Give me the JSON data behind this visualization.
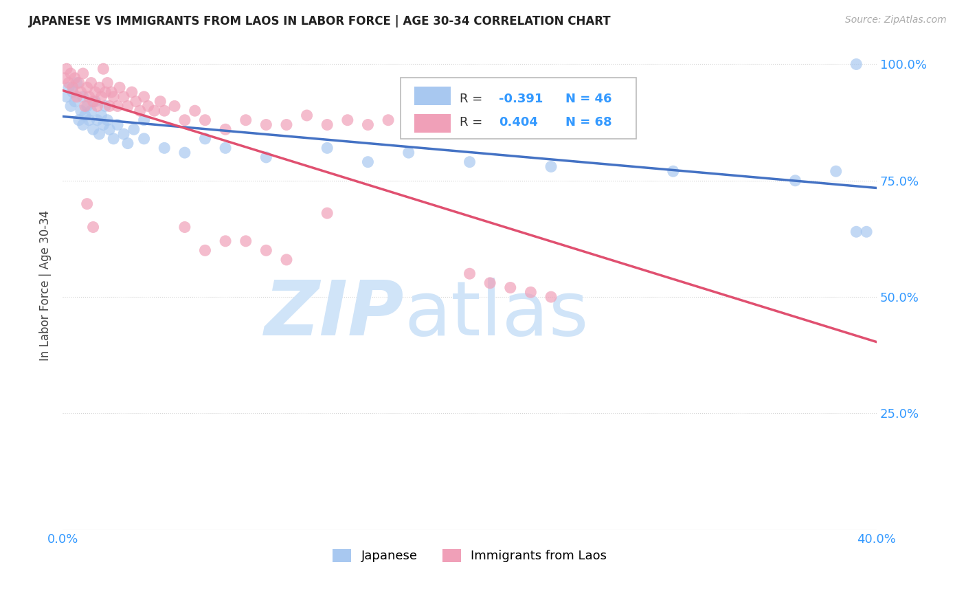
{
  "title": "JAPANESE VS IMMIGRANTS FROM LAOS IN LABOR FORCE | AGE 30-34 CORRELATION CHART",
  "source": "Source: ZipAtlas.com",
  "ylabel": "In Labor Force | Age 30-34",
  "xlim": [
    0.0,
    0.4
  ],
  "ylim": [
    0.0,
    1.05
  ],
  "legend_label1": "Japanese",
  "legend_label2": "Immigrants from Laos",
  "R1": -0.391,
  "N1": 46,
  "R2": 0.404,
  "N2": 68,
  "color_japanese": "#a8c8f0",
  "color_laos": "#f0a0b8",
  "color_line_japanese": "#4472c4",
  "color_line_laos": "#e05070",
  "watermark_color": "#d0e4f8",
  "japanese_x": [
    0.002,
    0.003,
    0.004,
    0.005,
    0.006,
    0.007,
    0.008,
    0.009,
    0.01,
    0.01,
    0.011,
    0.012,
    0.013,
    0.014,
    0.015,
    0.016,
    0.017,
    0.018,
    0.019,
    0.02,
    0.021,
    0.022,
    0.023,
    0.025,
    0.027,
    0.03,
    0.032,
    0.035,
    0.04,
    0.05,
    0.06,
    0.07,
    0.08,
    0.1,
    0.13,
    0.15,
    0.17,
    0.2,
    0.24,
    0.3,
    0.36,
    0.38,
    0.39,
    0.39,
    0.395,
    0.04
  ],
  "japanese_y": [
    0.93,
    0.95,
    0.91,
    0.94,
    0.92,
    0.96,
    0.88,
    0.9,
    0.87,
    0.93,
    0.89,
    0.91,
    0.88,
    0.9,
    0.86,
    0.92,
    0.88,
    0.85,
    0.89,
    0.87,
    0.91,
    0.88,
    0.86,
    0.84,
    0.87,
    0.85,
    0.83,
    0.86,
    0.84,
    0.82,
    0.81,
    0.84,
    0.82,
    0.8,
    0.82,
    0.79,
    0.81,
    0.79,
    0.78,
    0.77,
    0.75,
    0.77,
    0.64,
    1.0,
    0.64,
    0.88
  ],
  "laos_x": [
    0.001,
    0.002,
    0.003,
    0.004,
    0.005,
    0.006,
    0.007,
    0.008,
    0.009,
    0.01,
    0.011,
    0.012,
    0.013,
    0.014,
    0.015,
    0.016,
    0.017,
    0.018,
    0.019,
    0.02,
    0.021,
    0.022,
    0.023,
    0.024,
    0.025,
    0.027,
    0.028,
    0.03,
    0.032,
    0.034,
    0.036,
    0.038,
    0.04,
    0.042,
    0.045,
    0.048,
    0.05,
    0.055,
    0.06,
    0.065,
    0.07,
    0.08,
    0.09,
    0.1,
    0.11,
    0.12,
    0.13,
    0.14,
    0.15,
    0.16,
    0.17,
    0.18,
    0.19,
    0.2,
    0.012,
    0.015,
    0.06,
    0.07,
    0.08,
    0.09,
    0.1,
    0.11,
    0.13,
    0.2,
    0.21,
    0.22,
    0.23,
    0.24
  ],
  "laos_y": [
    0.97,
    0.99,
    0.96,
    0.98,
    0.95,
    0.97,
    0.93,
    0.96,
    0.94,
    0.98,
    0.91,
    0.95,
    0.93,
    0.96,
    0.92,
    0.94,
    0.91,
    0.95,
    0.93,
    0.99,
    0.94,
    0.96,
    0.91,
    0.94,
    0.93,
    0.91,
    0.95,
    0.93,
    0.91,
    0.94,
    0.92,
    0.9,
    0.93,
    0.91,
    0.9,
    0.92,
    0.9,
    0.91,
    0.88,
    0.9,
    0.88,
    0.86,
    0.88,
    0.87,
    0.87,
    0.89,
    0.87,
    0.88,
    0.87,
    0.88,
    0.87,
    0.87,
    0.86,
    0.87,
    0.7,
    0.65,
    0.65,
    0.6,
    0.62,
    0.62,
    0.6,
    0.58,
    0.68,
    0.55,
    0.53,
    0.52,
    0.51,
    0.5
  ]
}
